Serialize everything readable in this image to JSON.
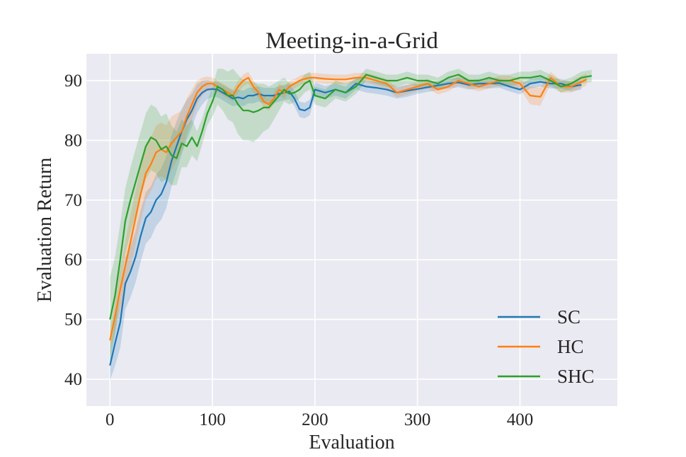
{
  "chart_data": {
    "type": "line",
    "title": "Meeting-in-a-Grid",
    "xlabel": "Evaluation",
    "ylabel": "Evaluation Return",
    "xlim": [
      -23,
      495
    ],
    "ylim": [
      35.5,
      94.5
    ],
    "xticks": [
      0,
      100,
      200,
      300,
      400
    ],
    "yticks": [
      40,
      50,
      60,
      70,
      80,
      90
    ],
    "grid": true,
    "background": "#eaeaf2",
    "legend_position": "lower-right",
    "shaded_band": "variance band around each mean line",
    "series": [
      {
        "name": "SC",
        "color": "#1f77b4",
        "x": [
          0,
          5,
          10,
          15,
          20,
          25,
          30,
          35,
          40,
          45,
          50,
          55,
          60,
          65,
          70,
          75,
          80,
          85,
          90,
          95,
          100,
          105,
          110,
          115,
          120,
          125,
          130,
          135,
          140,
          145,
          150,
          155,
          160,
          165,
          170,
          175,
          180,
          185,
          190,
          195,
          200,
          210,
          220,
          230,
          240,
          250,
          260,
          270,
          280,
          290,
          300,
          310,
          320,
          330,
          340,
          350,
          360,
          370,
          380,
          390,
          400,
          410,
          420,
          430,
          440,
          450,
          460
        ],
        "y": [
          42.3,
          46.0,
          49.5,
          56.0,
          58.0,
          60.5,
          64.0,
          67.0,
          68.0,
          70.0,
          71.0,
          73.0,
          76.5,
          79.0,
          81.5,
          83.5,
          85.0,
          87.0,
          88.0,
          88.5,
          88.6,
          88.5,
          88.0,
          87.5,
          87.0,
          87.2,
          87.0,
          87.5,
          87.5,
          87.8,
          87.5,
          87.5,
          87.5,
          87.8,
          88.0,
          88.2,
          87.0,
          85.2,
          85.0,
          85.5,
          88.5,
          88.0,
          88.5,
          88.0,
          89.5,
          89.0,
          88.8,
          88.5,
          88.0,
          88.3,
          88.6,
          88.9,
          89.2,
          89.5,
          89.7,
          89.3,
          89.5,
          89.5,
          89.6,
          89.0,
          88.5,
          89.5,
          89.8,
          89.5,
          89.5,
          89.0,
          89.3
        ],
        "band": [
          2.5,
          3.8,
          4.3,
          4.3,
          4.3,
          4.3,
          4.3,
          4.3,
          4.3,
          4.3,
          4.3,
          4.3,
          4.3,
          4.2,
          3.8,
          3.3,
          2.8,
          2.4,
          2.0,
          1.6,
          1.3,
          1.3,
          1.3,
          1.3,
          1.3,
          1.3,
          1.3,
          1.3,
          1.3,
          1.3,
          1.3,
          1.3,
          1.3,
          1.3,
          1.3,
          1.3,
          1.3,
          1.3,
          1.3,
          1.3,
          1.2,
          1.1,
          1.0,
          1.0,
          1.0,
          1.0,
          1.0,
          1.0,
          1.0,
          1.0,
          0.8,
          0.8,
          0.8,
          0.8,
          0.8,
          0.8,
          0.8,
          0.8,
          0.8,
          0.8,
          0.8,
          0.8,
          0.8,
          0.8,
          0.8,
          0.8,
          0.8
        ]
      },
      {
        "name": "HC",
        "color": "#ff7f0e",
        "x": [
          0,
          5,
          10,
          15,
          20,
          25,
          30,
          35,
          40,
          45,
          50,
          55,
          60,
          65,
          70,
          75,
          80,
          85,
          90,
          95,
          100,
          105,
          110,
          115,
          120,
          125,
          130,
          135,
          140,
          145,
          150,
          155,
          160,
          165,
          170,
          175,
          180,
          185,
          190,
          195,
          200,
          210,
          220,
          230,
          240,
          250,
          260,
          270,
          280,
          290,
          300,
          310,
          320,
          330,
          340,
          350,
          360,
          370,
          380,
          390,
          400,
          410,
          420,
          430,
          440,
          450,
          460,
          465
        ],
        "y": [
          46.5,
          50.5,
          55.0,
          59.0,
          63.0,
          67.0,
          71.0,
          74.5,
          76.0,
          78.0,
          78.5,
          78.0,
          79.5,
          80.5,
          81.5,
          84.0,
          86.0,
          88.0,
          89.0,
          89.5,
          89.5,
          89.0,
          88.5,
          88.0,
          87.5,
          89.0,
          90.0,
          90.5,
          89.0,
          88.0,
          86.5,
          86.0,
          87.0,
          88.5,
          88.0,
          89.0,
          89.5,
          90.0,
          90.3,
          90.5,
          90.5,
          90.3,
          90.2,
          90.2,
          90.5,
          90.5,
          90.0,
          89.5,
          88.0,
          88.5,
          89.0,
          89.5,
          88.5,
          89.0,
          90.0,
          89.5,
          89.0,
          89.5,
          90.0,
          90.0,
          89.5,
          87.5,
          87.3,
          90.5,
          89.0,
          89.0,
          89.8,
          90.2
        ],
        "band": [
          1.5,
          2.5,
          3.5,
          4.0,
          4.5,
          4.5,
          4.5,
          4.5,
          4.5,
          4.5,
          4.5,
          4.5,
          4.5,
          4.0,
          3.5,
          3.0,
          2.5,
          2.0,
          1.5,
          1.2,
          1.0,
          1.0,
          1.0,
          1.0,
          1.0,
          1.0,
          1.0,
          1.0,
          1.0,
          1.0,
          1.0,
          1.0,
          1.0,
          1.0,
          1.0,
          1.0,
          0.8,
          0.8,
          0.8,
          0.8,
          0.8,
          0.8,
          0.8,
          0.8,
          0.8,
          0.8,
          0.8,
          0.8,
          0.8,
          0.8,
          0.8,
          0.8,
          0.8,
          0.8,
          0.8,
          0.8,
          0.8,
          0.8,
          0.8,
          0.8,
          0.8,
          1.5,
          1.5,
          1.0,
          1.0,
          1.0,
          1.0,
          1.0
        ]
      },
      {
        "name": "SHC",
        "color": "#2ca02c",
        "x": [
          0,
          5,
          10,
          15,
          20,
          25,
          30,
          35,
          40,
          45,
          50,
          55,
          60,
          65,
          70,
          75,
          80,
          85,
          90,
          95,
          100,
          105,
          110,
          115,
          120,
          125,
          130,
          135,
          140,
          145,
          150,
          155,
          160,
          165,
          170,
          175,
          180,
          185,
          190,
          195,
          200,
          210,
          220,
          230,
          240,
          250,
          260,
          270,
          280,
          290,
          300,
          310,
          320,
          330,
          340,
          350,
          360,
          370,
          380,
          390,
          400,
          410,
          420,
          430,
          440,
          450,
          460,
          470
        ],
        "y": [
          50.0,
          54.0,
          60.0,
          66.5,
          70.0,
          73.0,
          76.0,
          79.0,
          80.5,
          80.0,
          78.5,
          79.0,
          77.5,
          77.0,
          79.5,
          79.0,
          80.5,
          79.0,
          81.5,
          84.5,
          86.5,
          89.0,
          88.5,
          87.5,
          87.5,
          86.0,
          85.0,
          85.0,
          84.7,
          85.0,
          85.5,
          85.5,
          86.5,
          87.5,
          88.5,
          87.8,
          88.0,
          88.5,
          89.5,
          90.0,
          87.5,
          87.0,
          88.5,
          88.0,
          89.0,
          91.0,
          90.5,
          90.0,
          90.0,
          90.5,
          90.0,
          90.0,
          89.5,
          90.5,
          91.0,
          90.0,
          90.0,
          90.5,
          90.0,
          90.0,
          90.5,
          90.5,
          90.8,
          90.0,
          89.0,
          89.5,
          90.5,
          90.8
        ],
        "band": [
          7.0,
          6.5,
          6.0,
          5.5,
          5.5,
          5.5,
          5.5,
          5.5,
          5.5,
          5.5,
          5.5,
          5.5,
          5.0,
          4.5,
          4.0,
          3.5,
          3.0,
          2.5,
          2.2,
          2.0,
          2.5,
          3.0,
          3.5,
          4.0,
          4.5,
          5.0,
          5.0,
          5.0,
          5.0,
          4.5,
          4.0,
          3.5,
          3.0,
          2.5,
          2.0,
          1.8,
          1.6,
          1.5,
          1.5,
          1.5,
          1.5,
          1.5,
          1.5,
          1.5,
          1.2,
          1.0,
          1.0,
          1.0,
          1.0,
          1.0,
          1.0,
          1.0,
          1.0,
          1.0,
          1.0,
          1.0,
          1.0,
          1.0,
          1.0,
          1.0,
          1.0,
          1.0,
          1.0,
          1.0,
          1.0,
          1.0,
          1.0,
          1.0
        ]
      }
    ]
  }
}
